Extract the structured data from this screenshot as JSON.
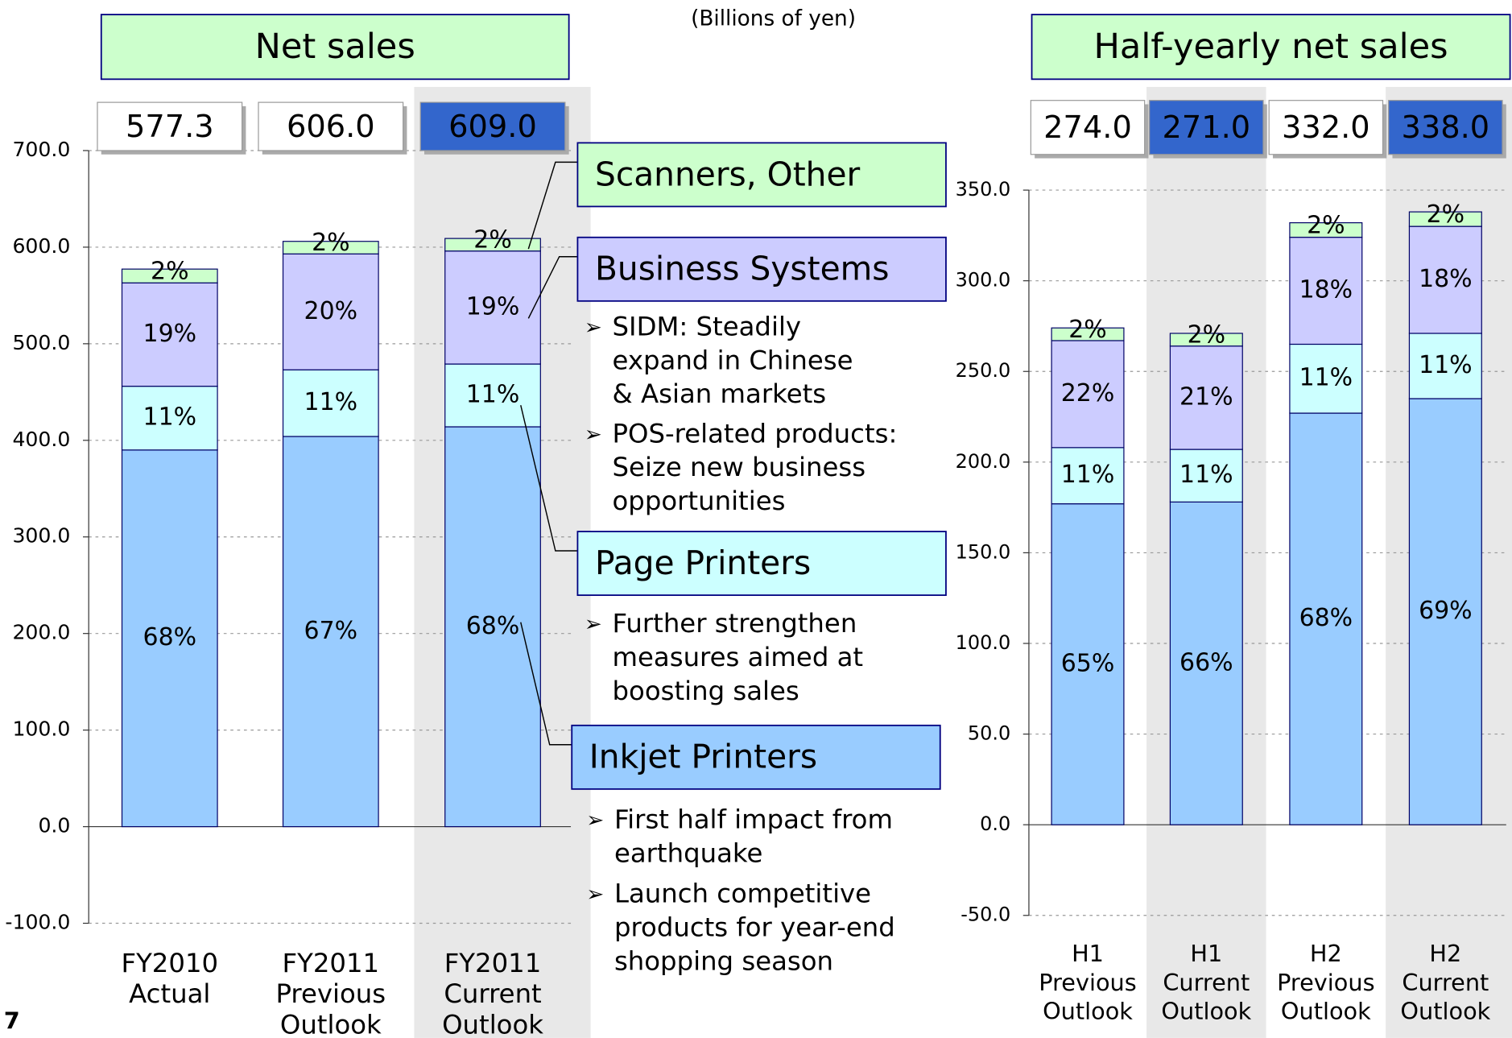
{
  "chart_data": [
    {
      "type": "stacked_bar",
      "title": "Net sales",
      "categories": [
        [
          "FY2010",
          "Actual"
        ],
        [
          "FY2011",
          "Previous",
          "Outlook"
        ],
        [
          "FY2011",
          "Current",
          "Outlook"
        ]
      ],
      "total_labels": [
        "577.3",
        "606.0",
        "609.0"
      ],
      "highlight": [
        false,
        false,
        true
      ],
      "series": [
        {
          "name": "Inkjet Printers",
          "color": "#99ccff",
          "values": [
            390,
            404,
            414
          ],
          "share_labels": [
            "68%",
            "67%",
            "68%"
          ]
        },
        {
          "name": "Page Printers",
          "color": "#ccffff",
          "values": [
            66,
            69,
            65
          ],
          "share_labels": [
            "11%",
            "11%",
            "11%"
          ]
        },
        {
          "name": "Business Systems",
          "color": "#ccccff",
          "values": [
            107,
            120,
            117
          ],
          "share_labels": [
            "19%",
            "20%",
            "19%"
          ]
        },
        {
          "name": "Scanners, Other",
          "color": "#ccffcc",
          "values": [
            14.3,
            13,
            13
          ],
          "share_labels": [
            "2%",
            "2%",
            "2%"
          ]
        }
      ],
      "ylim": [
        -100,
        700
      ],
      "yticks": [
        {
          "value": -100,
          "label": "-100.0"
        },
        {
          "value": 0,
          "label": "0.0"
        },
        {
          "value": 100,
          "label": "100.0"
        },
        {
          "value": 200,
          "label": "200.0"
        },
        {
          "value": 300,
          "label": "300.0"
        },
        {
          "value": 400,
          "label": "400.0"
        },
        {
          "value": 500,
          "label": "500.0"
        },
        {
          "value": 600,
          "label": "600.0"
        },
        {
          "value": 700,
          "label": "700.0"
        }
      ],
      "grid": true
    },
    {
      "type": "stacked_bar",
      "title": "Half-yearly net sales",
      "categories": [
        [
          "H1",
          "Previous",
          "Outlook"
        ],
        [
          "H1",
          "Current",
          "Outlook"
        ],
        [
          "H2",
          "Previous",
          "Outlook"
        ],
        [
          "H2",
          "Current",
          "Outlook"
        ]
      ],
      "total_labels": [
        "274.0",
        "271.0",
        "332.0",
        "338.0"
      ],
      "highlight": [
        false,
        true,
        false,
        true
      ],
      "series": [
        {
          "name": "Inkjet Printers",
          "color": "#99ccff",
          "values": [
            177,
            178,
            227,
            235
          ],
          "share_labels": [
            "65%",
            "66%",
            "68%",
            "69%"
          ]
        },
        {
          "name": "Page Printers",
          "color": "#ccffff",
          "values": [
            31,
            29,
            38,
            36
          ],
          "share_labels": [
            "11%",
            "11%",
            "11%",
            "11%"
          ]
        },
        {
          "name": "Business Systems",
          "color": "#ccccff",
          "values": [
            59,
            57,
            59,
            59
          ],
          "share_labels": [
            "22%",
            "21%",
            "18%",
            "18%"
          ]
        },
        {
          "name": "Scanners, Other",
          "color": "#ccffcc",
          "values": [
            7,
            7,
            8,
            8
          ],
          "share_labels": [
            "2%",
            "2%",
            "2%",
            "2%"
          ]
        }
      ],
      "ylim": [
        -50,
        350
      ],
      "yticks": [
        {
          "value": -50,
          "label": "-50.0"
        },
        {
          "value": 0,
          "label": "0.0"
        },
        {
          "value": 50,
          "label": "50.0"
        },
        {
          "value": 100,
          "label": "100.0"
        },
        {
          "value": 150,
          "label": "150.0"
        },
        {
          "value": 200,
          "label": "200.0"
        },
        {
          "value": 250,
          "label": "250.0"
        },
        {
          "value": 300,
          "label": "300.0"
        },
        {
          "value": 350,
          "label": "350.0"
        }
      ],
      "grid": true
    }
  ],
  "unit_note": "(Billions of yen)",
  "notes": {
    "business": [
      [
        "SIDM: Steadily",
        "expand in Chinese",
        "& Asian markets"
      ],
      [
        "POS-related products:",
        "Seize new business",
        "opportunities"
      ]
    ],
    "page": [
      [
        "Further strengthen",
        "measures aimed at",
        "boosting sales"
      ]
    ],
    "inkjet": [
      [
        "First half impact from",
        "earthquake"
      ],
      [
        "Launch competitive",
        "products for year-end",
        "shopping season"
      ]
    ]
  },
  "page_number": "7"
}
